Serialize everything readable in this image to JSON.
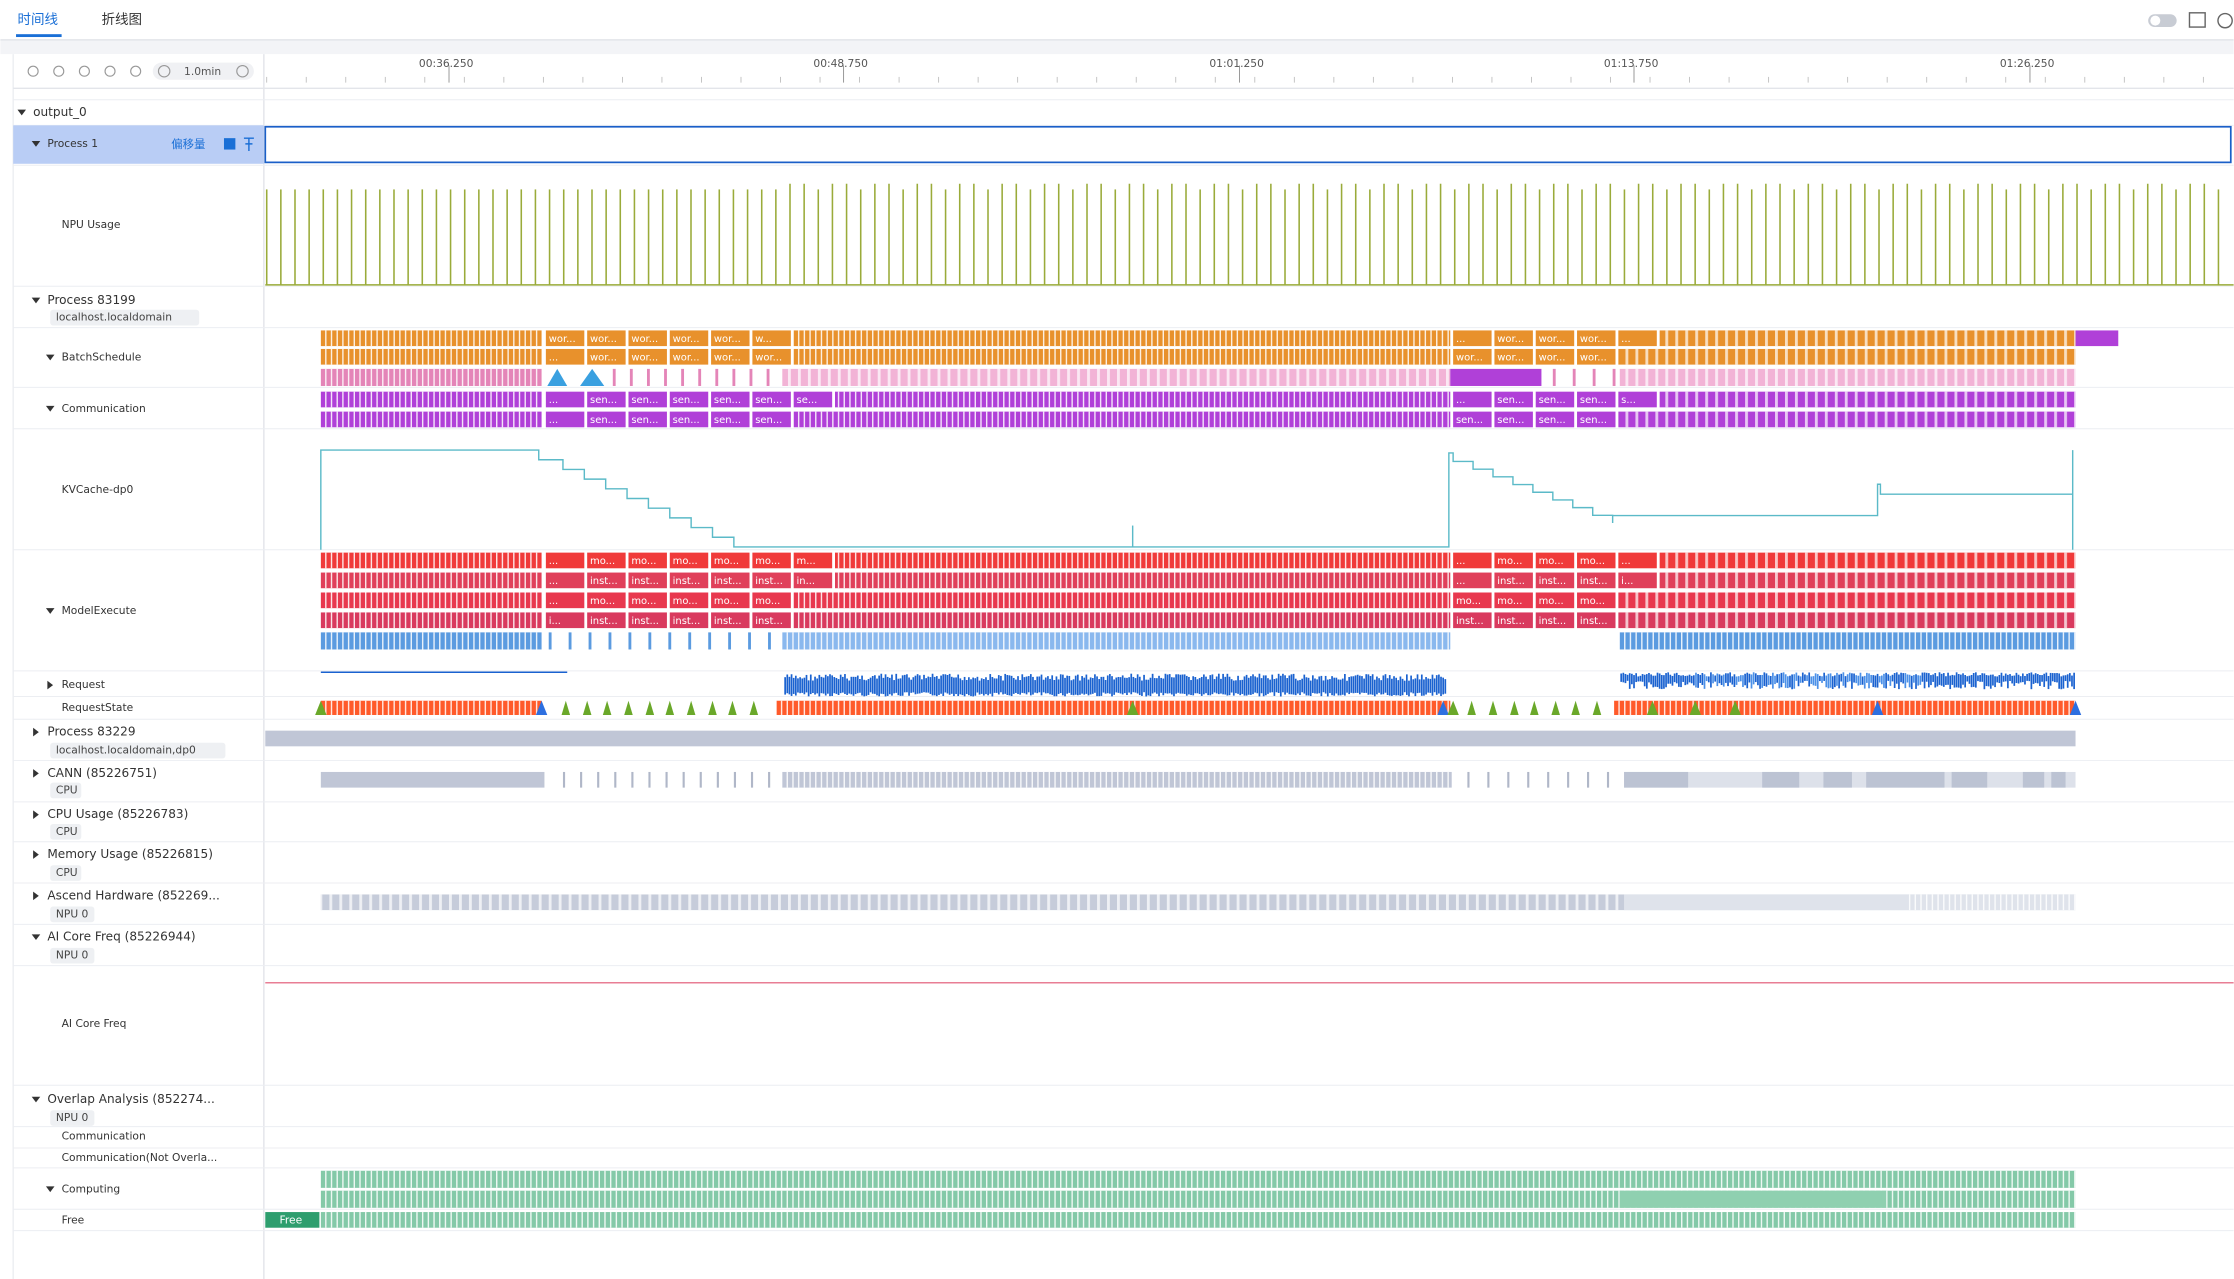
{
  "tabs": [
    "时间线",
    "折线图"
  ],
  "toolbar": {
    "zoom": "1.0min"
  },
  "time_ticks": [
    "00:36.250",
    "00:48.750",
    "01:01.250",
    "01:13.750",
    "01:26.250"
  ],
  "process1_offset": "偏移量",
  "tree": [
    {
      "label": "output_0"
    },
    {
      "label": "Process 1"
    },
    {
      "label": "NPU Usage"
    },
    {
      "label": "Process 83199",
      "sub": "localhost.localdomain"
    },
    {
      "label": "BatchSchedule"
    },
    {
      "label": "Communication"
    },
    {
      "label": "KVCache-dp0"
    },
    {
      "label": "ModelExecute"
    },
    {
      "label": "Request"
    },
    {
      "label": "RequestState"
    },
    {
      "label": "Process 83229",
      "sub": "localhost.localdomain,dp0"
    },
    {
      "label": "CANN (85226751)",
      "sub": "CPU"
    },
    {
      "label": "CPU Usage (85226783)",
      "sub": "CPU"
    },
    {
      "label": "Memory Usage (85226815)",
      "sub": "CPU"
    },
    {
      "label": "Ascend Hardware (852269...",
      "sub": "NPU 0"
    },
    {
      "label": "AI Core Freq (85226944)",
      "sub": "NPU 0"
    },
    {
      "label": "AI Core Freq"
    },
    {
      "label": "Overlap Analysis (852274...",
      "sub": "NPU 0"
    },
    {
      "label": "Communication"
    },
    {
      "label": "Communication(Not Overla..."
    },
    {
      "label": "Computing"
    },
    {
      "label": "Free"
    }
  ],
  "lanes": [
    {
      "g1": [
        "wor...",
        "wor...",
        "wor...",
        "wor...",
        "wor...",
        "w..."
      ],
      "g2": [
        "...",
        "wor...",
        "wor...",
        "wor...",
        "..."
      ]
    },
    {
      "g1": [
        "...",
        "wor...",
        "wor...",
        "wor...",
        "wor...",
        "wor..."
      ],
      "g2": [
        "wor...",
        "wor...",
        "wor...",
        "wor..."
      ]
    },
    {
      "g1": [
        "...",
        "sen...",
        "sen...",
        "sen...",
        "sen...",
        "sen...",
        "se..."
      ],
      "g2": [
        "...",
        "sen...",
        "sen...",
        "sen...",
        "s..."
      ]
    },
    {
      "g1": [
        "...",
        "sen...",
        "sen...",
        "sen...",
        "sen...",
        "sen..."
      ],
      "g2": [
        "sen...",
        "sen...",
        "sen...",
        "sen..."
      ]
    },
    {
      "g1": [
        "...",
        "mo...",
        "mo...",
        "mo...",
        "mo...",
        "mo...",
        "m..."
      ],
      "g2": [
        "...",
        "mo...",
        "mo...",
        "mo...",
        "..."
      ]
    },
    {
      "g1": [
        "...",
        "inst...",
        "inst...",
        "inst...",
        "inst...",
        "inst...",
        "in..."
      ],
      "g2": [
        "...",
        "inst...",
        "inst...",
        "inst...",
        "i..."
      ]
    },
    {
      "g1": [
        "...",
        "mo...",
        "mo...",
        "mo...",
        "mo...",
        "mo..."
      ],
      "g2": [
        "mo...",
        "mo...",
        "mo...",
        "mo..."
      ]
    },
    {
      "g1": [
        "i...",
        "inst...",
        "inst...",
        "inst...",
        "inst...",
        "inst..."
      ],
      "g2": [
        "inst...",
        "inst...",
        "inst...",
        "inst..."
      ]
    }
  ],
  "free_label": "Free"
}
